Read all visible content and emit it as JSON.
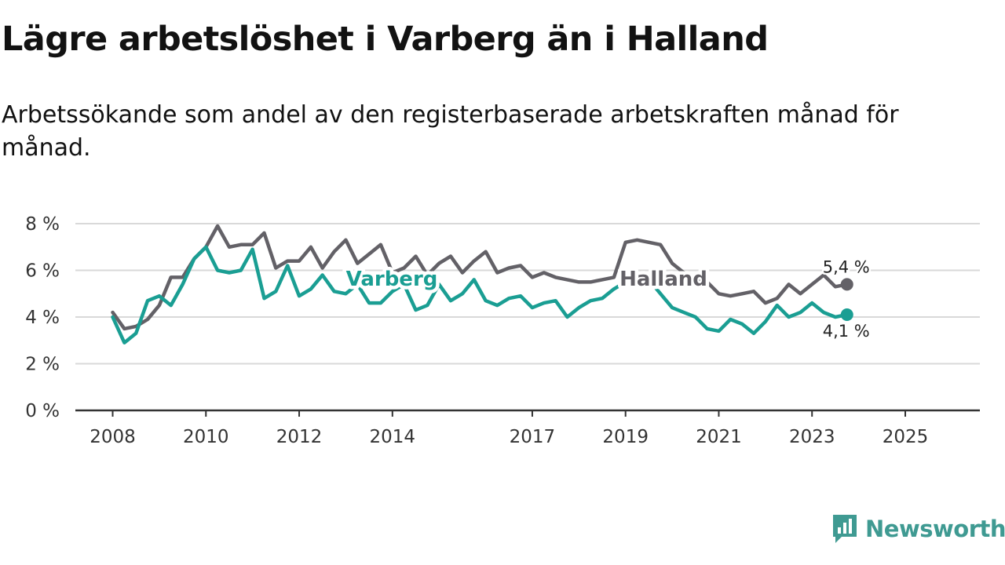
{
  "title": "Lägre arbetslöshet i Varberg än i Halland",
  "subtitle": "Arbetssökande som andel av den registerbaserade arbetskraften månad för månad.",
  "brand": {
    "name": "Newsworthy",
    "color": "#3f9a92"
  },
  "chart_data": {
    "type": "line",
    "title": "Lägre arbetslöshet i Varberg än i Halland",
    "subtitle": "Arbetssökande som andel av den registerbaserade arbetskraften månad för månad.",
    "xlabel": "",
    "ylabel": "",
    "x_start": 2008.0,
    "x_step": 0.25,
    "xlim": [
      2007.2,
      2026.6
    ],
    "ylim": [
      0,
      8
    ],
    "y_ticks": [
      0,
      2,
      4,
      6,
      8
    ],
    "y_tick_labels": [
      "0 %",
      "2 %",
      "4 %",
      "6 %",
      "8 %"
    ],
    "x_ticks": [
      2008,
      2010,
      2012,
      2014,
      2017,
      2019,
      2021,
      2023,
      2025
    ],
    "x_tick_labels": [
      "2008",
      "2010",
      "2012",
      "2014",
      "2017",
      "2019",
      "2021",
      "2023",
      "2025"
    ],
    "grid": true,
    "series": [
      {
        "name": "Halland",
        "color": "#636167",
        "values": [
          4.2,
          3.5,
          3.6,
          3.9,
          4.5,
          5.7,
          5.7,
          6.5,
          7.0,
          7.9,
          7.0,
          7.1,
          7.1,
          7.6,
          6.1,
          6.4,
          6.4,
          7.0,
          6.1,
          6.8,
          7.3,
          6.3,
          6.7,
          7.1,
          5.9,
          6.1,
          6.6,
          5.8,
          6.3,
          6.6,
          5.9,
          6.4,
          6.8,
          5.9,
          6.1,
          6.2,
          5.7,
          5.9,
          5.7,
          5.6,
          5.5,
          5.5,
          5.6,
          5.7,
          7.2,
          7.3,
          7.2,
          7.1,
          6.3,
          5.9,
          5.6,
          5.5,
          5.0,
          4.9,
          5.0,
          5.1,
          4.6,
          4.8,
          5.4,
          5.0,
          5.4,
          5.8,
          5.3,
          5.4
        ],
        "end_label": "5,4 %"
      },
      {
        "name": "Varberg",
        "color": "#1a9e93",
        "values": [
          4.0,
          2.9,
          3.3,
          4.7,
          4.9,
          4.5,
          5.4,
          6.5,
          7.0,
          6.0,
          5.9,
          6.0,
          6.9,
          4.8,
          5.1,
          6.2,
          4.9,
          5.2,
          5.8,
          5.1,
          5.0,
          5.4,
          4.6,
          4.6,
          5.1,
          5.4,
          4.3,
          4.5,
          5.4,
          4.7,
          5.0,
          5.6,
          4.7,
          4.5,
          4.8,
          4.9,
          4.4,
          4.6,
          4.7,
          4.0,
          4.4,
          4.7,
          4.8,
          5.2,
          5.5,
          5.5,
          5.6,
          5.0,
          4.4,
          4.2,
          4.0,
          3.5,
          3.4,
          3.9,
          3.7,
          3.3,
          3.8,
          4.5,
          4.0,
          4.2,
          4.6,
          4.2,
          4.0,
          4.1
        ],
        "end_label": "4,1 %"
      }
    ]
  }
}
